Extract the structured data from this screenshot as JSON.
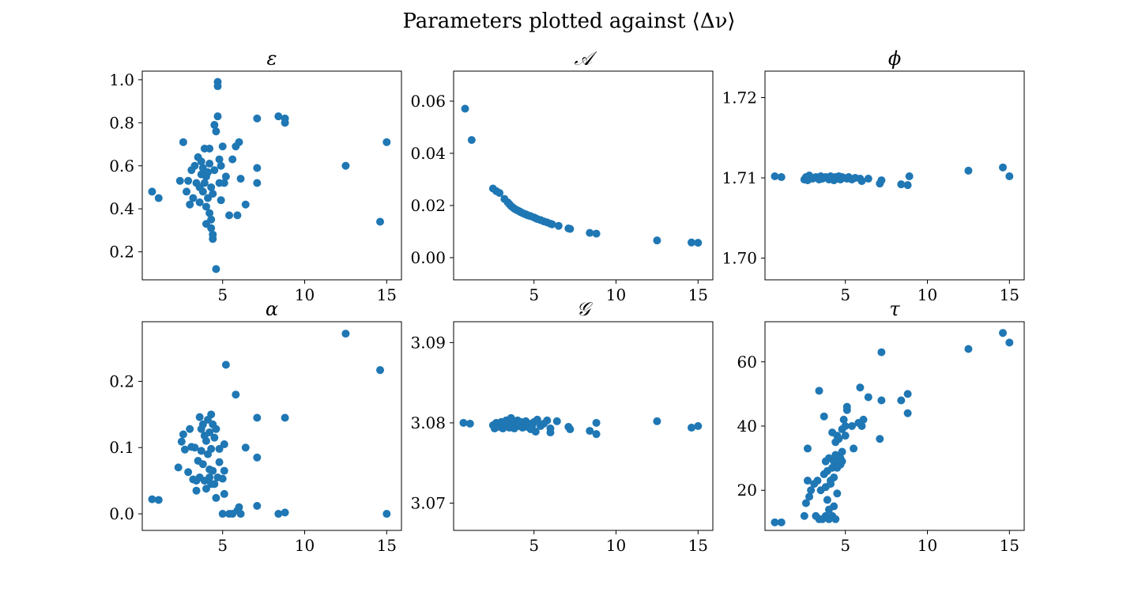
{
  "figure": {
    "title": "Parameters plotted against ⟨Δν⟩",
    "point_color": "#1f77b4"
  },
  "chart_data": [
    {
      "type": "scatter",
      "title": "ε",
      "xlim": [
        0.1,
        15.9
      ],
      "ylim": [
        0.07,
        1.04
      ],
      "xticks": [
        5,
        10,
        15
      ],
      "yticks": [
        0.2,
        0.4,
        0.6,
        0.8,
        1.0
      ],
      "ytick_labels": [
        "0.2",
        "0.4",
        "0.6",
        "0.8",
        "1.0"
      ],
      "points": [
        [
          0.7,
          0.48
        ],
        [
          1.1,
          0.45
        ],
        [
          2.4,
          0.53
        ],
        [
          2.6,
          0.71
        ],
        [
          2.8,
          0.48
        ],
        [
          2.9,
          0.53
        ],
        [
          3.0,
          0.42
        ],
        [
          3.1,
          0.58
        ],
        [
          3.2,
          0.45
        ],
        [
          3.3,
          0.6
        ],
        [
          3.4,
          0.52
        ],
        [
          3.5,
          0.64
        ],
        [
          3.6,
          0.5
        ],
        [
          3.6,
          0.43
        ],
        [
          3.7,
          0.56
        ],
        [
          3.7,
          0.62
        ],
        [
          3.8,
          0.48
        ],
        [
          3.8,
          0.59
        ],
        [
          3.9,
          0.52
        ],
        [
          3.9,
          0.68
        ],
        [
          4.0,
          0.33
        ],
        [
          4.0,
          0.41
        ],
        [
          4.0,
          0.55
        ],
        [
          4.1,
          0.45
        ],
        [
          4.1,
          0.57
        ],
        [
          4.2,
          0.61
        ],
        [
          4.2,
          0.68
        ],
        [
          4.2,
          0.38
        ],
        [
          4.3,
          0.5
        ],
        [
          4.3,
          0.35
        ],
        [
          4.3,
          0.31
        ],
        [
          4.4,
          0.26
        ],
        [
          4.4,
          0.28
        ],
        [
          4.4,
          0.47
        ],
        [
          4.5,
          0.58
        ],
        [
          4.5,
          0.79
        ],
        [
          4.6,
          0.76
        ],
        [
          4.6,
          0.12
        ],
        [
          4.7,
          0.99
        ],
        [
          4.7,
          0.97
        ],
        [
          4.7,
          0.83
        ],
        [
          4.8,
          0.63
        ],
        [
          4.8,
          0.52
        ],
        [
          4.9,
          0.6
        ],
        [
          4.9,
          0.44
        ],
        [
          5.0,
          0.69
        ],
        [
          5.1,
          0.52
        ],
        [
          5.2,
          0.55
        ],
        [
          5.4,
          0.37
        ],
        [
          5.6,
          0.63
        ],
        [
          5.8,
          0.69
        ],
        [
          5.9,
          0.37
        ],
        [
          6.0,
          0.71
        ],
        [
          6.1,
          0.54
        ],
        [
          6.4,
          0.42
        ],
        [
          7.1,
          0.52
        ],
        [
          7.1,
          0.59
        ],
        [
          7.1,
          0.82
        ],
        [
          8.4,
          0.83
        ],
        [
          8.8,
          0.8
        ],
        [
          8.8,
          0.82
        ],
        [
          12.5,
          0.6
        ],
        [
          14.6,
          0.34
        ],
        [
          15.0,
          0.71
        ]
      ]
    },
    {
      "type": "scatter",
      "title": "𝒜",
      "xlim": [
        0.1,
        15.9
      ],
      "ylim": [
        -0.0085,
        0.0715
      ],
      "xticks": [
        5,
        10,
        15
      ],
      "yticks": [
        0.0,
        0.02,
        0.04,
        0.06
      ],
      "ytick_labels": [
        "0.00",
        "0.02",
        "0.04",
        "0.06"
      ],
      "points": [
        [
          0.8,
          0.0571
        ],
        [
          1.2,
          0.0451
        ],
        [
          2.5,
          0.0265
        ],
        [
          2.7,
          0.0255
        ],
        [
          2.9,
          0.0248
        ],
        [
          3.2,
          0.0225
        ],
        [
          3.4,
          0.0212
        ],
        [
          3.5,
          0.0205
        ],
        [
          3.6,
          0.0198
        ],
        [
          3.7,
          0.0193
        ],
        [
          3.8,
          0.0188
        ],
        [
          3.9,
          0.0184
        ],
        [
          4.0,
          0.0181
        ],
        [
          4.1,
          0.0178
        ],
        [
          4.2,
          0.0174
        ],
        [
          4.3,
          0.0171
        ],
        [
          4.4,
          0.0168
        ],
        [
          4.5,
          0.0166
        ],
        [
          4.6,
          0.0163
        ],
        [
          4.7,
          0.0161
        ],
        [
          4.8,
          0.0159
        ],
        [
          5.0,
          0.0154
        ],
        [
          5.1,
          0.0151
        ],
        [
          5.2,
          0.0148
        ],
        [
          5.4,
          0.0144
        ],
        [
          5.6,
          0.0139
        ],
        [
          5.8,
          0.0135
        ],
        [
          6.0,
          0.013
        ],
        [
          6.1,
          0.0128
        ],
        [
          6.5,
          0.0122
        ],
        [
          7.1,
          0.0112
        ],
        [
          7.2,
          0.011
        ],
        [
          8.4,
          0.0095
        ],
        [
          8.8,
          0.0092
        ],
        [
          12.5,
          0.0066
        ],
        [
          14.6,
          0.0058
        ],
        [
          15.0,
          0.0057
        ]
      ]
    },
    {
      "type": "scatter",
      "title": "ϕ",
      "xlim": [
        0.1,
        15.9
      ],
      "ylim": [
        1.6973,
        1.7233
      ],
      "xticks": [
        5,
        10,
        15
      ],
      "yticks": [
        1.7,
        1.71,
        1.72
      ],
      "ytick_labels": [
        "1.70",
        "1.71",
        "1.72"
      ],
      "points": [
        [
          0.7,
          1.7102
        ],
        [
          1.1,
          1.7101
        ],
        [
          2.5,
          1.7098
        ],
        [
          2.6,
          1.7101
        ],
        [
          2.7,
          1.7097
        ],
        [
          2.8,
          1.7103
        ],
        [
          3.0,
          1.7099
        ],
        [
          3.2,
          1.7101
        ],
        [
          3.4,
          1.7098
        ],
        [
          3.5,
          1.7102
        ],
        [
          3.6,
          1.7099
        ],
        [
          3.8,
          1.7101
        ],
        [
          4.0,
          1.7098
        ],
        [
          4.1,
          1.7102
        ],
        [
          4.2,
          1.71
        ],
        [
          4.3,
          1.7097
        ],
        [
          4.4,
          1.7101
        ],
        [
          4.5,
          1.7099
        ],
        [
          4.6,
          1.7102
        ],
        [
          4.7,
          1.7098
        ],
        [
          4.8,
          1.7101
        ],
        [
          4.9,
          1.71
        ],
        [
          5.1,
          1.7099
        ],
        [
          5.2,
          1.7101
        ],
        [
          5.4,
          1.7098
        ],
        [
          5.6,
          1.71
        ],
        [
          5.9,
          1.7099
        ],
        [
          6.0,
          1.7096
        ],
        [
          6.4,
          1.7099
        ],
        [
          7.1,
          1.7093
        ],
        [
          7.2,
          1.7097
        ],
        [
          8.4,
          1.7092
        ],
        [
          8.8,
          1.7091
        ],
        [
          8.9,
          1.7102
        ],
        [
          12.5,
          1.7109
        ],
        [
          14.6,
          1.7113
        ],
        [
          15.0,
          1.7102
        ]
      ]
    },
    {
      "type": "scatter",
      "title": "α",
      "xlim": [
        0.1,
        15.9
      ],
      "ylim": [
        -0.025,
        0.29
      ],
      "xticks": [
        5,
        10,
        15
      ],
      "yticks": [
        0.0,
        0.1,
        0.2
      ],
      "ytick_labels": [
        "0.0",
        "0.1",
        "0.2"
      ],
      "points": [
        [
          0.7,
          0.022
        ],
        [
          1.1,
          0.021
        ],
        [
          2.3,
          0.07
        ],
        [
          2.5,
          0.109
        ],
        [
          2.6,
          0.12
        ],
        [
          2.7,
          0.097
        ],
        [
          2.9,
          0.063
        ],
        [
          3.0,
          0.128
        ],
        [
          3.1,
          0.101
        ],
        [
          3.2,
          0.052
        ],
        [
          3.3,
          0.1
        ],
        [
          3.4,
          0.05
        ],
        [
          3.4,
          0.035
        ],
        [
          3.5,
          0.08
        ],
        [
          3.6,
          0.146
        ],
        [
          3.6,
          0.055
        ],
        [
          3.7,
          0.128
        ],
        [
          3.7,
          0.095
        ],
        [
          3.8,
          0.135
        ],
        [
          3.8,
          0.075
        ],
        [
          3.9,
          0.118
        ],
        [
          3.9,
          0.05
        ],
        [
          4.0,
          0.038
        ],
        [
          4.0,
          0.11
        ],
        [
          4.1,
          0.09
        ],
        [
          4.1,
          0.142
        ],
        [
          4.2,
          0.055
        ],
        [
          4.2,
          0.067
        ],
        [
          4.2,
          0.123
        ],
        [
          4.3,
          0.15
        ],
        [
          4.3,
          0.098
        ],
        [
          4.3,
          0.045
        ],
        [
          4.4,
          0.135
        ],
        [
          4.4,
          0.065
        ],
        [
          4.5,
          0.115
        ],
        [
          4.5,
          0.045
        ],
        [
          4.6,
          0.024
        ],
        [
          4.6,
          0.128
        ],
        [
          4.7,
          0.055
        ],
        [
          4.8,
          0.078
        ],
        [
          4.8,
          0.098
        ],
        [
          5.0,
          0.053
        ],
        [
          5.0,
          0.0
        ],
        [
          5.1,
          0.065
        ],
        [
          5.1,
          0.03
        ],
        [
          5.1,
          0.105
        ],
        [
          5.2,
          0.225
        ],
        [
          5.4,
          0.0
        ],
        [
          5.6,
          0.0
        ],
        [
          5.8,
          0.18
        ],
        [
          5.9,
          0.005
        ],
        [
          6.0,
          0.01
        ],
        [
          6.1,
          0.0
        ],
        [
          6.4,
          0.1
        ],
        [
          7.1,
          0.145
        ],
        [
          7.1,
          0.085
        ],
        [
          7.1,
          0.012
        ],
        [
          8.4,
          0.0
        ],
        [
          8.8,
          0.145
        ],
        [
          8.8,
          0.002
        ],
        [
          12.5,
          0.272
        ],
        [
          14.6,
          0.217
        ],
        [
          15.0,
          0.0
        ]
      ]
    },
    {
      "type": "scatter",
      "title": "𝒢",
      "xlim": [
        0.1,
        15.9
      ],
      "ylim": [
        3.0666,
        3.0926
      ],
      "xticks": [
        5,
        10,
        15
      ],
      "yticks": [
        3.07,
        3.08,
        3.09
      ],
      "ytick_labels": [
        "3.07",
        "3.08",
        "3.09"
      ],
      "points": [
        [
          0.7,
          3.08
        ],
        [
          1.1,
          3.0799
        ],
        [
          2.5,
          3.0797
        ],
        [
          2.6,
          3.0793
        ],
        [
          2.7,
          3.08
        ],
        [
          2.8,
          3.0795
        ],
        [
          3.0,
          3.0801
        ],
        [
          3.1,
          3.0793
        ],
        [
          3.2,
          3.0797
        ],
        [
          3.3,
          3.0803
        ],
        [
          3.4,
          3.0796
        ],
        [
          3.5,
          3.0794
        ],
        [
          3.6,
          3.0801
        ],
        [
          3.6,
          3.0806
        ],
        [
          3.7,
          3.0798
        ],
        [
          3.8,
          3.0793
        ],
        [
          3.9,
          3.0799
        ],
        [
          4.0,
          3.0803
        ],
        [
          4.1,
          3.0796
        ],
        [
          4.2,
          3.0801
        ],
        [
          4.3,
          3.0794
        ],
        [
          4.4,
          3.0798
        ],
        [
          4.5,
          3.0802
        ],
        [
          4.6,
          3.0795
        ],
        [
          4.7,
          3.0799
        ],
        [
          4.8,
          3.0792
        ],
        [
          4.9,
          3.0797
        ],
        [
          5.0,
          3.0801
        ],
        [
          5.1,
          3.0789
        ],
        [
          5.2,
          3.0804
        ],
        [
          5.4,
          3.0796
        ],
        [
          5.6,
          3.0799
        ],
        [
          5.8,
          3.0803
        ],
        [
          6.0,
          3.0788
        ],
        [
          6.0,
          3.0793
        ],
        [
          6.4,
          3.0802
        ],
        [
          7.1,
          3.0795
        ],
        [
          7.2,
          3.0792
        ],
        [
          8.4,
          3.079
        ],
        [
          8.8,
          3.0786
        ],
        [
          8.8,
          3.08
        ],
        [
          12.5,
          3.0802
        ],
        [
          14.6,
          3.0794
        ],
        [
          15.0,
          3.0796
        ]
      ]
    },
    {
      "type": "scatter",
      "title": "τ",
      "xlim": [
        0.1,
        15.9
      ],
      "ylim": [
        7.5,
        72.5
      ],
      "xticks": [
        5,
        10,
        15
      ],
      "yticks": [
        20,
        40,
        60
      ],
      "ytick_labels": [
        "20",
        "40",
        "60"
      ],
      "points": [
        [
          0.7,
          10
        ],
        [
          1.1,
          10
        ],
        [
          2.5,
          12
        ],
        [
          2.6,
          16
        ],
        [
          2.7,
          23
        ],
        [
          2.7,
          33
        ],
        [
          2.8,
          18
        ],
        [
          2.9,
          20
        ],
        [
          3.1,
          22
        ],
        [
          3.2,
          12
        ],
        [
          3.3,
          23
        ],
        [
          3.4,
          11
        ],
        [
          3.4,
          51
        ],
        [
          3.5,
          20
        ],
        [
          3.6,
          11
        ],
        [
          3.7,
          25
        ],
        [
          3.7,
          43
        ],
        [
          3.8,
          12
        ],
        [
          3.8,
          21
        ],
        [
          3.8,
          29
        ],
        [
          3.9,
          17
        ],
        [
          3.9,
          26
        ],
        [
          4.0,
          11
        ],
        [
          4.0,
          14
        ],
        [
          4.0,
          30
        ],
        [
          4.1,
          22
        ],
        [
          4.1,
          23
        ],
        [
          4.2,
          12
        ],
        [
          4.2,
          27
        ],
        [
          4.2,
          38
        ],
        [
          4.3,
          15
        ],
        [
          4.3,
          24
        ],
        [
          4.3,
          29
        ],
        [
          4.4,
          11
        ],
        [
          4.4,
          31
        ],
        [
          4.4,
          35
        ],
        [
          4.5,
          19
        ],
        [
          4.5,
          27
        ],
        [
          4.5,
          37
        ],
        [
          4.6,
          36
        ],
        [
          4.7,
          28
        ],
        [
          4.7,
          30
        ],
        [
          4.8,
          29
        ],
        [
          4.8,
          32
        ],
        [
          4.8,
          39
        ],
        [
          4.9,
          42
        ],
        [
          5.0,
          37
        ],
        [
          5.0,
          40
        ],
        [
          5.1,
          45
        ],
        [
          5.1,
          46
        ],
        [
          5.4,
          40
        ],
        [
          5.5,
          33
        ],
        [
          5.8,
          41
        ],
        [
          5.9,
          52
        ],
        [
          6.0,
          40
        ],
        [
          6.1,
          42
        ],
        [
          6.4,
          49
        ],
        [
          7.1,
          36
        ],
        [
          7.2,
          48
        ],
        [
          7.2,
          63
        ],
        [
          8.4,
          48
        ],
        [
          8.8,
          44
        ],
        [
          8.8,
          50
        ],
        [
          12.5,
          64
        ],
        [
          14.6,
          69
        ],
        [
          15.0,
          66
        ]
      ]
    }
  ]
}
